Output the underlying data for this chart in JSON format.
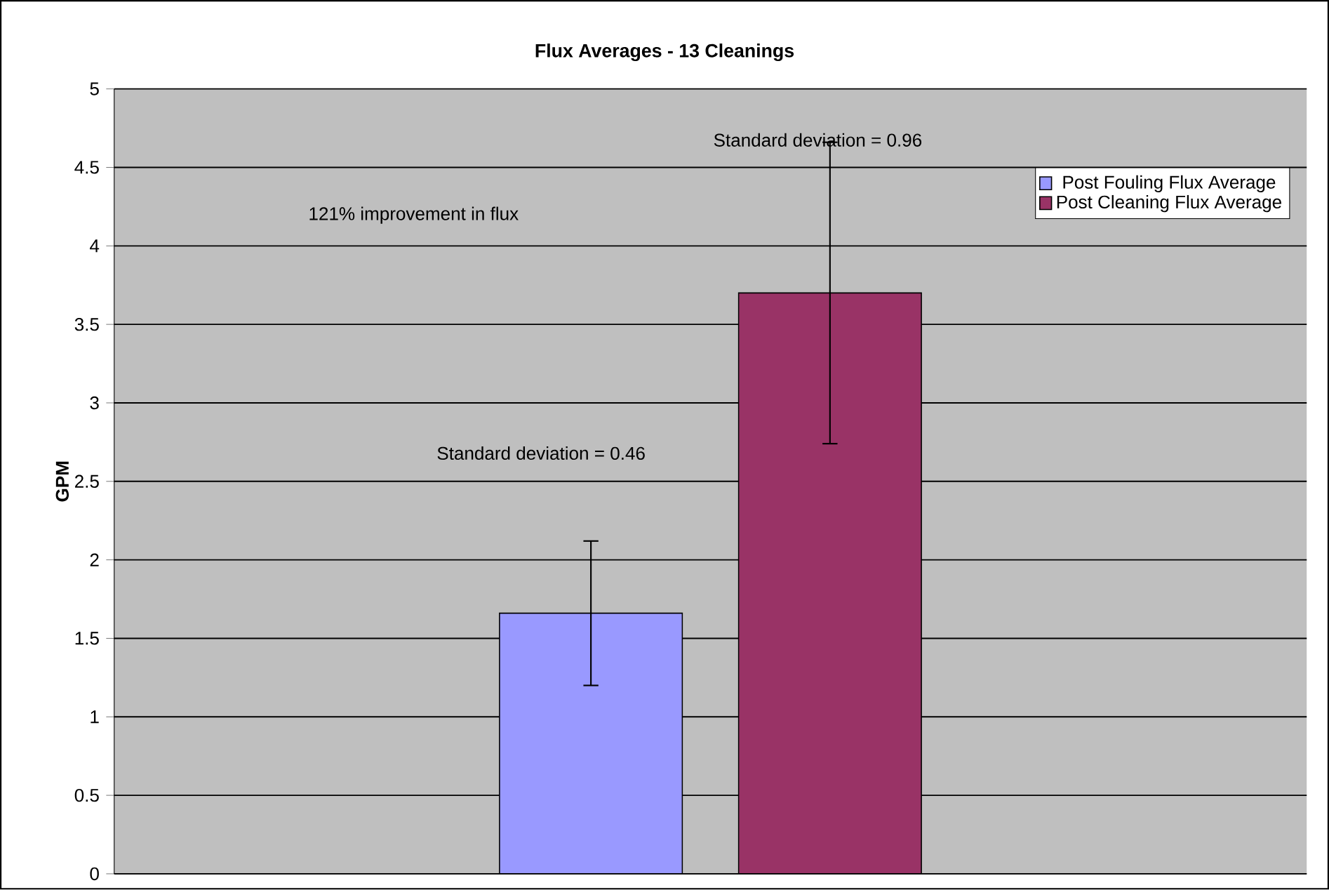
{
  "chart_data": {
    "type": "bar",
    "title": "Flux Averages - 13 Cleanings",
    "ylabel": "GPM",
    "categories": [
      null
    ],
    "series": [
      {
        "name": "Post Fouling Flux Average",
        "color": "#9999ff",
        "values": [
          1.66
        ],
        "errors": [
          0.46
        ]
      },
      {
        "name": "Post Cleaning Flux Average",
        "color": "#993366",
        "values": [
          3.7
        ],
        "errors": [
          0.96
        ]
      }
    ],
    "ylim": [
      0,
      5
    ],
    "yticks": [
      0,
      0.5,
      1,
      1.5,
      2,
      2.5,
      3,
      3.5,
      4,
      4.5,
      5
    ],
    "grid": "y",
    "legend": "top right",
    "annotations": [
      "Standard deviation = 0.46",
      "Standard deviation = 0.96",
      "121% improvement in flux"
    ]
  }
}
